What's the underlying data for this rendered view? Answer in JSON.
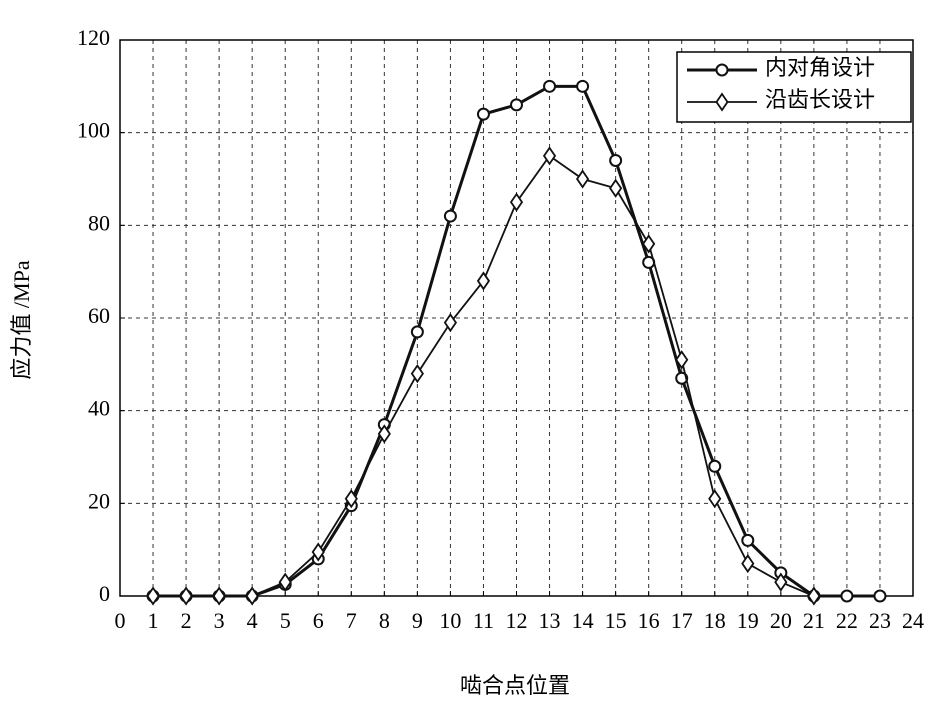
{
  "chart_data": {
    "type": "line",
    "xlabel": "啮合点位置",
    "ylabel": "应力值 /MPa",
    "xlim": [
      0,
      24
    ],
    "xticks": [
      0,
      1,
      2,
      3,
      4,
      5,
      6,
      7,
      8,
      9,
      10,
      11,
      12,
      13,
      14,
      15,
      16,
      17,
      18,
      19,
      20,
      21,
      22,
      23,
      24
    ],
    "ylim": [
      0,
      120
    ],
    "yticks": [
      0,
      20,
      40,
      60,
      80,
      100,
      120
    ],
    "grid": true,
    "legend": "upper right",
    "series": [
      {
        "name": "内对角设计",
        "color": "#111111",
        "marker": "circle",
        "x": [
          1,
          2,
          3,
          4,
          5,
          6,
          7,
          8,
          9,
          10,
          11,
          12,
          13,
          14,
          15,
          16,
          17,
          18,
          19,
          20,
          21,
          22,
          23
        ],
        "values": [
          0,
          0,
          0,
          0,
          2.5,
          8,
          19.5,
          37,
          57,
          82,
          104,
          106,
          110,
          110,
          94,
          72,
          47,
          28,
          12,
          5,
          0,
          0,
          0
        ]
      },
      {
        "name": "沿齿长设计",
        "color": "#111111",
        "marker": "diamond",
        "x": [
          1,
          2,
          3,
          4,
          5,
          6,
          7,
          8,
          9,
          10,
          11,
          12,
          13,
          14,
          15,
          16,
          17,
          18,
          19,
          20,
          21
        ],
        "values": [
          0,
          0,
          0,
          0,
          3,
          9.5,
          21,
          35,
          48,
          59,
          68,
          85,
          95,
          90,
          88,
          76,
          51,
          21,
          7,
          3,
          0
        ]
      }
    ]
  }
}
